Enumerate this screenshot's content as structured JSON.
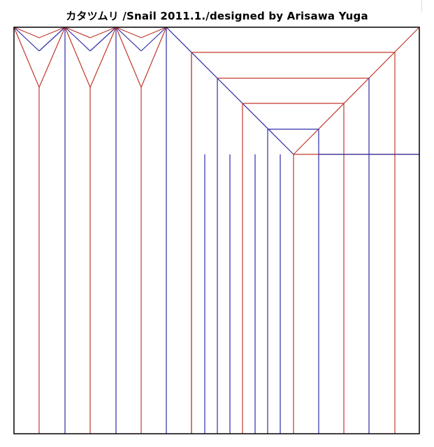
{
  "title": "カタツムリ /Snail  2011.1./designed by Arisawa Yuga",
  "colors": {
    "mountain": "#c0392b",
    "valley": "#2c2ca8",
    "border": "#000000"
  }
}
